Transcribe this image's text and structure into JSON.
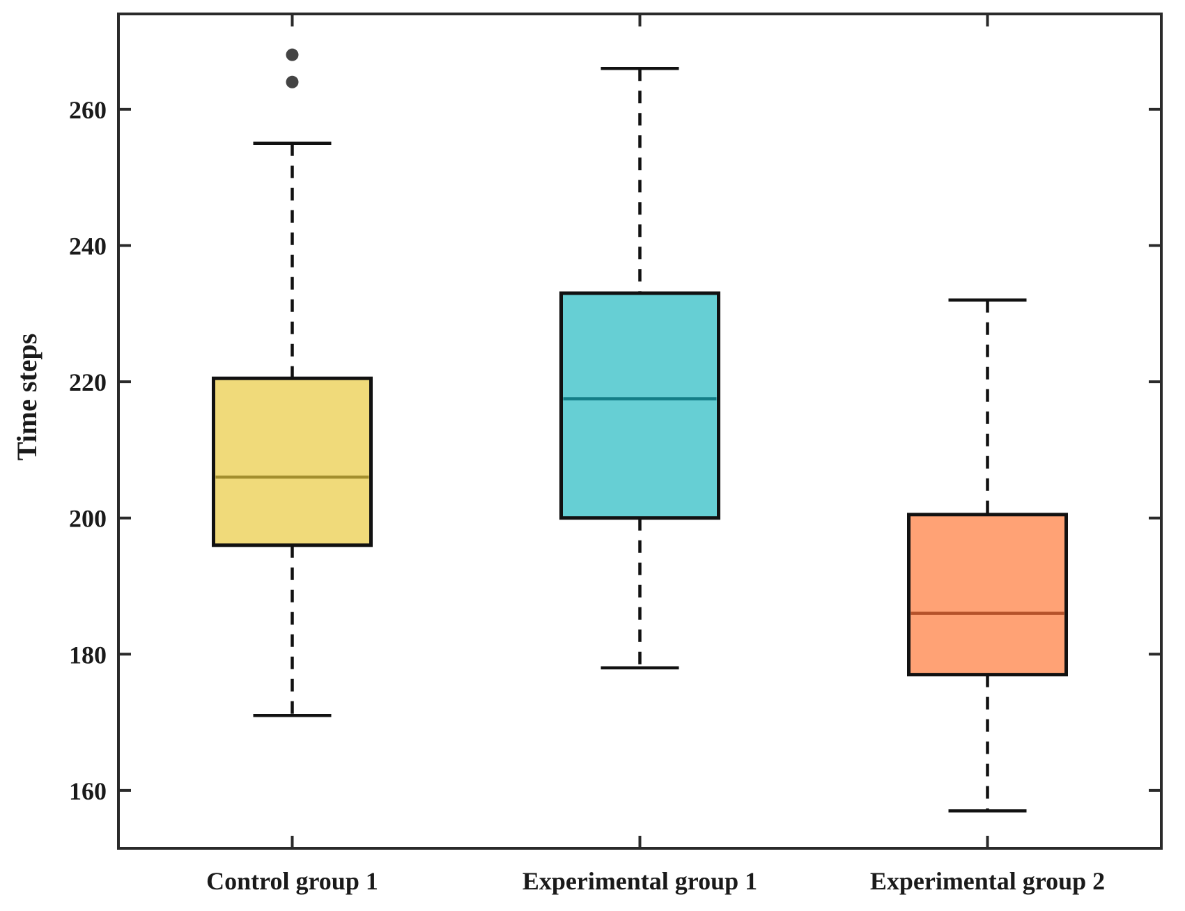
{
  "chart_data": {
    "type": "box",
    "title": "",
    "xlabel": "",
    "ylabel": "Time steps",
    "ylim": [
      151.5,
      274
    ],
    "yticks": [
      160,
      180,
      200,
      220,
      240,
      260
    ],
    "grid": false,
    "legend": "none",
    "categories": [
      "Control group 1",
      "Experimental group 1",
      "Experimental group 2"
    ],
    "boxes": [
      {
        "name": "Control group 1",
        "whisker_low": 171,
        "q1": 196,
        "median": 206,
        "q3": 220.5,
        "whisker_high": 255,
        "outliers": [
          264,
          268
        ],
        "fill": "#F0DA7A",
        "median_color": "#A38E2E"
      },
      {
        "name": "Experimental group 1",
        "whisker_low": 178,
        "q1": 200,
        "median": 217.5,
        "q3": 233,
        "whisker_high": 266,
        "outliers": [],
        "fill": "#66CFD4",
        "median_color": "#137E86"
      },
      {
        "name": "Experimental group 2",
        "whisker_low": 157,
        "q1": 177,
        "median": 186,
        "q3": 200.5,
        "whisker_high": 232,
        "outliers": [],
        "fill": "#FFA275",
        "median_color": "#B5522A"
      }
    ],
    "outlier_color": "#444444"
  }
}
